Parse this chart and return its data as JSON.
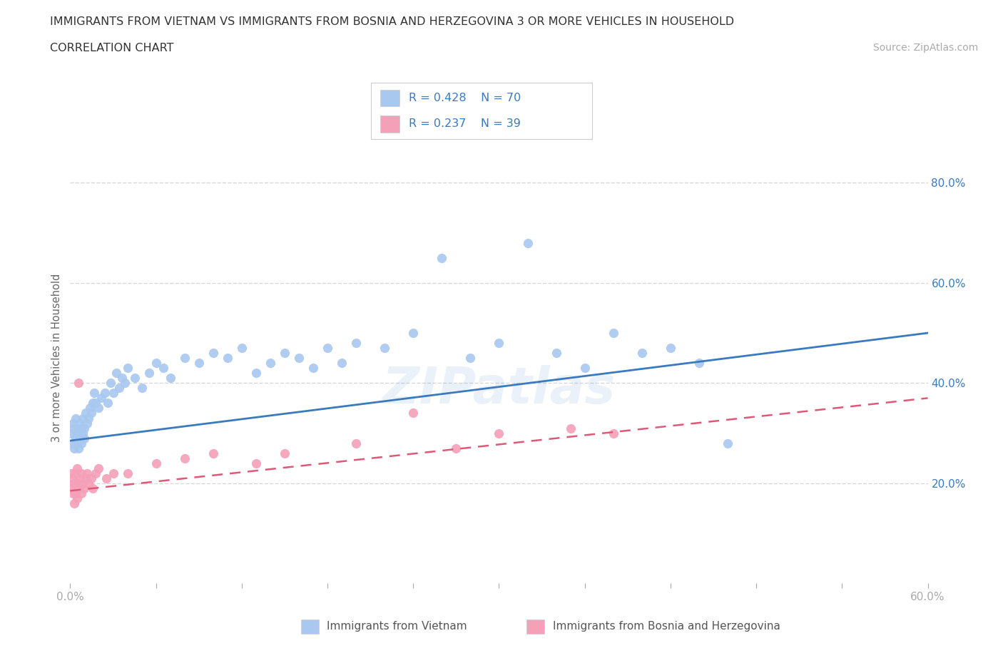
{
  "title_line1": "IMMIGRANTS FROM VIETNAM VS IMMIGRANTS FROM BOSNIA AND HERZEGOVINA 3 OR MORE VEHICLES IN HOUSEHOLD",
  "title_line2": "CORRELATION CHART",
  "source_text": "Source: ZipAtlas.com",
  "ylabel": "3 or more Vehicles in Household",
  "xlim": [
    0.0,
    0.6
  ],
  "ylim": [
    0.0,
    0.9
  ],
  "yticks_right": [
    0.2,
    0.4,
    0.6,
    0.8
  ],
  "ytick_right_labels": [
    "20.0%",
    "40.0%",
    "60.0%",
    "80.0%"
  ],
  "vietnam_color": "#a8c8f0",
  "bosnia_color": "#f4a0b8",
  "vietnam_line_color": "#3a7abf",
  "bosnia_line_color": "#e05878",
  "legend_text_color": "#3a7abf",
  "grid_color": "#d8d8d8",
  "background_color": "#ffffff",
  "tick_color": "#aaaaaa",
  "watermark_color": "#3a7abf",
  "vietnam_x": [
    0.001,
    0.002,
    0.002,
    0.003,
    0.003,
    0.004,
    0.004,
    0.005,
    0.005,
    0.006,
    0.006,
    0.007,
    0.007,
    0.008,
    0.008,
    0.009,
    0.009,
    0.01,
    0.01,
    0.011,
    0.012,
    0.013,
    0.014,
    0.015,
    0.016,
    0.017,
    0.018,
    0.02,
    0.022,
    0.024,
    0.026,
    0.028,
    0.03,
    0.032,
    0.034,
    0.036,
    0.038,
    0.04,
    0.045,
    0.05,
    0.055,
    0.06,
    0.065,
    0.07,
    0.08,
    0.09,
    0.1,
    0.11,
    0.12,
    0.13,
    0.14,
    0.15,
    0.16,
    0.17,
    0.18,
    0.19,
    0.2,
    0.22,
    0.24,
    0.26,
    0.28,
    0.3,
    0.32,
    0.34,
    0.36,
    0.38,
    0.4,
    0.42,
    0.44,
    0.46
  ],
  "vietnam_y": [
    0.3,
    0.28,
    0.32,
    0.27,
    0.31,
    0.29,
    0.33,
    0.28,
    0.3,
    0.27,
    0.31,
    0.29,
    0.32,
    0.28,
    0.31,
    0.3,
    0.33,
    0.29,
    0.31,
    0.34,
    0.32,
    0.33,
    0.35,
    0.34,
    0.36,
    0.38,
    0.36,
    0.35,
    0.37,
    0.38,
    0.36,
    0.4,
    0.38,
    0.42,
    0.39,
    0.41,
    0.4,
    0.43,
    0.41,
    0.39,
    0.42,
    0.44,
    0.43,
    0.41,
    0.45,
    0.44,
    0.46,
    0.45,
    0.47,
    0.42,
    0.44,
    0.46,
    0.45,
    0.43,
    0.47,
    0.44,
    0.48,
    0.47,
    0.5,
    0.65,
    0.45,
    0.48,
    0.68,
    0.46,
    0.43,
    0.5,
    0.46,
    0.47,
    0.44,
    0.28
  ],
  "bosnia_x": [
    0.001,
    0.001,
    0.002,
    0.002,
    0.003,
    0.003,
    0.004,
    0.004,
    0.005,
    0.005,
    0.005,
    0.006,
    0.006,
    0.007,
    0.008,
    0.008,
    0.009,
    0.01,
    0.011,
    0.012,
    0.013,
    0.015,
    0.016,
    0.018,
    0.02,
    0.025,
    0.03,
    0.04,
    0.06,
    0.08,
    0.1,
    0.13,
    0.15,
    0.2,
    0.24,
    0.27,
    0.3,
    0.35,
    0.38
  ],
  "bosnia_y": [
    0.19,
    0.22,
    0.18,
    0.21,
    0.2,
    0.16,
    0.22,
    0.18,
    0.2,
    0.17,
    0.23,
    0.4,
    0.19,
    0.21,
    0.18,
    0.22,
    0.2,
    0.19,
    0.21,
    0.22,
    0.2,
    0.21,
    0.19,
    0.22,
    0.23,
    0.21,
    0.22,
    0.22,
    0.24,
    0.25,
    0.26,
    0.24,
    0.26,
    0.28,
    0.34,
    0.27,
    0.3,
    0.31,
    0.3
  ],
  "vietnam_reg": [
    0.0,
    0.6,
    0.285,
    0.5
  ],
  "bosnia_reg": [
    0.0,
    0.6,
    0.185,
    0.37
  ]
}
